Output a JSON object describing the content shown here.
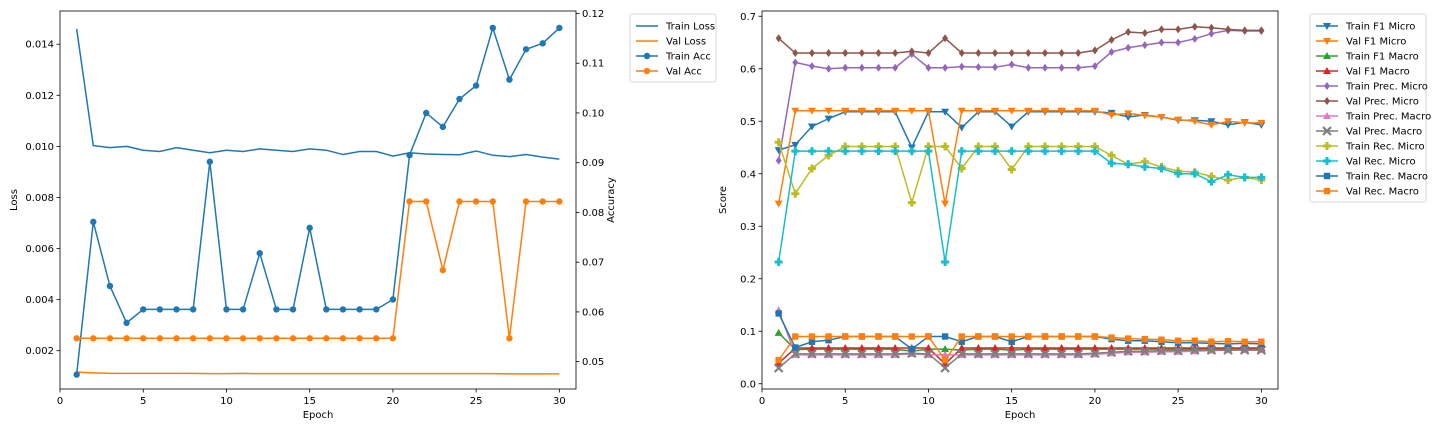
{
  "chart_data": [
    {
      "type": "line",
      "xlabel": "Epoch",
      "ylabel": "Loss",
      "ylabel_right": "Accuracy",
      "xlim": [
        0,
        31
      ],
      "ylim": [
        0.0005,
        0.0153
      ],
      "ylim_right": [
        0.0445,
        0.1205
      ],
      "xticks": [
        0,
        5,
        10,
        15,
        20,
        25,
        30
      ],
      "yticks": [
        "0.002",
        "0.004",
        "0.006",
        "0.008",
        "0.010",
        "0.012",
        "0.014"
      ],
      "yticks_right": [
        "0.05",
        "0.06",
        "0.07",
        "0.08",
        "0.09",
        "0.10",
        "0.11",
        "0.12"
      ],
      "legend_position": "outside-right",
      "x": [
        1,
        2,
        3,
        4,
        5,
        6,
        7,
        8,
        9,
        10,
        11,
        12,
        13,
        14,
        15,
        16,
        17,
        18,
        19,
        20,
        21,
        22,
        23,
        24,
        25,
        26,
        27,
        28,
        29,
        30
      ],
      "series": [
        {
          "name": "Train Loss",
          "axis": "left",
          "color": "#1f77b4",
          "marker": "none",
          "values": [
            0.0146,
            0.01003,
            0.00995,
            0.01,
            0.00985,
            0.0098,
            0.00995,
            0.00985,
            0.00975,
            0.00985,
            0.0098,
            0.0099,
            0.00985,
            0.0098,
            0.0099,
            0.00985,
            0.00968,
            0.0098,
            0.0098,
            0.00962,
            0.00975,
            0.0097,
            0.00968,
            0.00967,
            0.00982,
            0.00965,
            0.0096,
            0.00968,
            0.00958,
            0.0095
          ]
        },
        {
          "name": "Val Loss",
          "axis": "left",
          "color": "#ff7f0e",
          "marker": "none",
          "values": [
            0.00116,
            0.00113,
            0.00111,
            0.00111,
            0.00111,
            0.00111,
            0.00111,
            0.00111,
            0.0011,
            0.0011,
            0.00111,
            0.0011,
            0.0011,
            0.0011,
            0.0011,
            0.0011,
            0.0011,
            0.0011,
            0.0011,
            0.0011,
            0.0011,
            0.0011,
            0.0011,
            0.0011,
            0.0011,
            0.0011,
            0.00109,
            0.00109,
            0.00109,
            0.00109
          ]
        },
        {
          "name": "Train Acc",
          "axis": "right",
          "color": "#1f77b4",
          "marker": "circle",
          "values": [
            0.0474,
            0.0781,
            0.0652,
            0.0578,
            0.0605,
            0.0605,
            0.0605,
            0.0605,
            0.0902,
            0.0605,
            0.0605,
            0.0718,
            0.0605,
            0.0605,
            0.0769,
            0.0605,
            0.0605,
            0.0605,
            0.0605,
            0.0625,
            0.0915,
            0.1,
            0.0972,
            0.1028,
            0.1055,
            0.1171,
            0.1067,
            0.1128,
            0.114,
            0.1171
          ]
        },
        {
          "name": "Val Acc",
          "axis": "right",
          "color": "#ff7f0e",
          "marker": "circle",
          "values": [
            0.0547,
            0.0547,
            0.0547,
            0.0547,
            0.0547,
            0.0547,
            0.0547,
            0.0547,
            0.0547,
            0.0547,
            0.0547,
            0.0547,
            0.0547,
            0.0547,
            0.0547,
            0.0547,
            0.0547,
            0.0547,
            0.0547,
            0.0547,
            0.0822,
            0.0822,
            0.0684,
            0.0822,
            0.0822,
            0.0822,
            0.0547,
            0.0822,
            0.0822,
            0.0822
          ]
        }
      ]
    },
    {
      "type": "line",
      "xlabel": "Epoch",
      "ylabel": "Score",
      "xlim": [
        0,
        31
      ],
      "ylim": [
        -0.01,
        0.71
      ],
      "xticks": [
        0,
        5,
        10,
        15,
        20,
        25,
        30
      ],
      "yticks": [
        "0.0",
        "0.1",
        "0.2",
        "0.3",
        "0.4",
        "0.5",
        "0.6",
        "0.7"
      ],
      "legend_position": "outside-right",
      "x": [
        1,
        2,
        3,
        4,
        5,
        6,
        7,
        8,
        9,
        10,
        11,
        12,
        13,
        14,
        15,
        16,
        17,
        18,
        19,
        20,
        21,
        22,
        23,
        24,
        25,
        26,
        27,
        28,
        29,
        30
      ],
      "series": [
        {
          "name": "Train F1 Micro",
          "color": "#1f77b4",
          "marker": "tri-down",
          "values": [
            0.445,
            0.455,
            0.49,
            0.505,
            0.518,
            0.518,
            0.518,
            0.518,
            0.45,
            0.518,
            0.518,
            0.488,
            0.518,
            0.518,
            0.49,
            0.518,
            0.518,
            0.518,
            0.518,
            0.518,
            0.516,
            0.508,
            0.512,
            0.508,
            0.502,
            0.502,
            0.5,
            0.493,
            0.498,
            0.493
          ]
        },
        {
          "name": "Val F1 Micro",
          "color": "#ff7f0e",
          "marker": "tri-down",
          "values": [
            0.343,
            0.52,
            0.52,
            0.52,
            0.52,
            0.52,
            0.52,
            0.52,
            0.52,
            0.52,
            0.343,
            0.52,
            0.52,
            0.52,
            0.52,
            0.52,
            0.52,
            0.52,
            0.52,
            0.52,
            0.512,
            0.515,
            0.511,
            0.508,
            0.503,
            0.5,
            0.493,
            0.5,
            0.497,
            0.497
          ]
        },
        {
          "name": "Train F1 Macro",
          "color": "#2ca02c",
          "marker": "tri-up",
          "values": [
            0.097,
            0.065,
            0.066,
            0.066,
            0.066,
            0.066,
            0.066,
            0.066,
            0.062,
            0.066,
            0.066,
            0.064,
            0.066,
            0.066,
            0.064,
            0.066,
            0.066,
            0.066,
            0.066,
            0.066,
            0.066,
            0.066,
            0.066,
            0.066,
            0.066,
            0.066,
            0.066,
            0.066,
            0.066,
            0.066
          ]
        },
        {
          "name": "Val F1 Macro",
          "color": "#d62728",
          "marker": "tri-up",
          "values": [
            0.039,
            0.068,
            0.068,
            0.068,
            0.068,
            0.068,
            0.068,
            0.068,
            0.068,
            0.068,
            0.038,
            0.068,
            0.068,
            0.068,
            0.068,
            0.068,
            0.068,
            0.068,
            0.068,
            0.068,
            0.068,
            0.068,
            0.068,
            0.068,
            0.068,
            0.068,
            0.068,
            0.068,
            0.068,
            0.068
          ]
        },
        {
          "name": "Train Prec. Micro",
          "color": "#9467bd",
          "marker": "diamond",
          "values": [
            0.425,
            0.612,
            0.605,
            0.6,
            0.602,
            0.602,
            0.602,
            0.602,
            0.628,
            0.602,
            0.602,
            0.604,
            0.603,
            0.603,
            0.608,
            0.602,
            0.602,
            0.602,
            0.602,
            0.605,
            0.632,
            0.64,
            0.645,
            0.65,
            0.65,
            0.657,
            0.667,
            0.673,
            0.672,
            0.672
          ]
        },
        {
          "name": "Val Prec. Micro",
          "color": "#8c564b",
          "marker": "diamond",
          "values": [
            0.658,
            0.63,
            0.63,
            0.63,
            0.63,
            0.63,
            0.63,
            0.63,
            0.633,
            0.63,
            0.658,
            0.63,
            0.63,
            0.63,
            0.63,
            0.63,
            0.63,
            0.63,
            0.63,
            0.635,
            0.655,
            0.67,
            0.668,
            0.675,
            0.675,
            0.68,
            0.678,
            0.675,
            0.673,
            0.673
          ]
        },
        {
          "name": "Train Prec. Macro",
          "color": "#e377c2",
          "marker": "tri-up",
          "values": [
            0.14,
            0.055,
            0.055,
            0.055,
            0.055,
            0.055,
            0.055,
            0.055,
            0.057,
            0.055,
            0.055,
            0.055,
            0.055,
            0.055,
            0.055,
            0.055,
            0.055,
            0.055,
            0.055,
            0.056,
            0.058,
            0.06,
            0.06,
            0.061,
            0.061,
            0.062,
            0.063,
            0.064,
            0.064,
            0.064
          ]
        },
        {
          "name": "Val Prec. Macro",
          "color": "#7f7f7f",
          "marker": "x",
          "values": [
            0.03,
            0.057,
            0.057,
            0.057,
            0.057,
            0.057,
            0.057,
            0.057,
            0.058,
            0.057,
            0.03,
            0.057,
            0.057,
            0.057,
            0.057,
            0.057,
            0.057,
            0.057,
            0.057,
            0.058,
            0.06,
            0.062,
            0.062,
            0.063,
            0.063,
            0.064,
            0.064,
            0.064,
            0.064,
            0.064
          ]
        },
        {
          "name": "Train Rec. Micro",
          "color": "#bcbd22",
          "marker": "plus",
          "values": [
            0.46,
            0.362,
            0.41,
            0.435,
            0.452,
            0.452,
            0.452,
            0.452,
            0.345,
            0.452,
            0.452,
            0.41,
            0.452,
            0.452,
            0.408,
            0.452,
            0.452,
            0.452,
            0.452,
            0.452,
            0.435,
            0.418,
            0.423,
            0.413,
            0.405,
            0.403,
            0.395,
            0.388,
            0.393,
            0.388
          ]
        },
        {
          "name": "Val Rec. Micro",
          "color": "#17becf",
          "marker": "plus",
          "values": [
            0.232,
            0.443,
            0.443,
            0.443,
            0.443,
            0.443,
            0.443,
            0.443,
            0.443,
            0.443,
            0.232,
            0.443,
            0.443,
            0.443,
            0.443,
            0.443,
            0.443,
            0.443,
            0.443,
            0.443,
            0.42,
            0.418,
            0.413,
            0.41,
            0.4,
            0.4,
            0.385,
            0.398,
            0.393,
            0.393
          ]
        },
        {
          "name": "Train Rec. Macro",
          "color": "#1f77b4",
          "marker": "square",
          "values": [
            0.134,
            0.069,
            0.08,
            0.083,
            0.09,
            0.09,
            0.09,
            0.09,
            0.066,
            0.09,
            0.09,
            0.08,
            0.09,
            0.09,
            0.08,
            0.09,
            0.09,
            0.09,
            0.09,
            0.09,
            0.085,
            0.082,
            0.082,
            0.08,
            0.078,
            0.078,
            0.077,
            0.076,
            0.077,
            0.076
          ]
        },
        {
          "name": "Val Rec. Macro",
          "color": "#ff7f0e",
          "marker": "square",
          "values": [
            0.045,
            0.09,
            0.09,
            0.09,
            0.09,
            0.09,
            0.09,
            0.09,
            0.09,
            0.09,
            0.045,
            0.09,
            0.09,
            0.09,
            0.09,
            0.09,
            0.09,
            0.09,
            0.09,
            0.09,
            0.088,
            0.086,
            0.085,
            0.084,
            0.082,
            0.082,
            0.08,
            0.081,
            0.08,
            0.08
          ]
        }
      ]
    }
  ]
}
